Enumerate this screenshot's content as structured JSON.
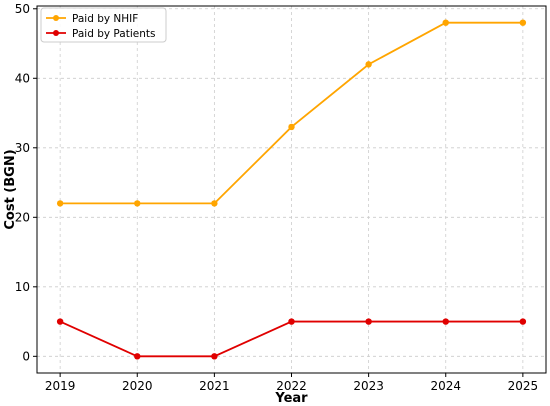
{
  "chart_data": {
    "type": "line",
    "x": [
      2019,
      2020,
      2021,
      2022,
      2023,
      2024,
      2025
    ],
    "series": [
      {
        "name": "Paid by NHIF",
        "color": "#FFA500",
        "values": [
          22,
          22,
          22,
          33,
          42,
          48,
          48
        ]
      },
      {
        "name": "Paid by Patients",
        "color": "#E00000",
        "values": [
          5,
          0,
          0,
          5,
          5,
          5,
          5
        ]
      }
    ],
    "xlabel": "Year",
    "ylabel": "Cost (BGN)",
    "xlim": [
      2018.7,
      2025.3
    ],
    "ylim": [
      -2.4,
      50.4
    ],
    "yticks": [
      0,
      10,
      20,
      30,
      40,
      50
    ],
    "grid": true,
    "legend_position": "top-left"
  }
}
